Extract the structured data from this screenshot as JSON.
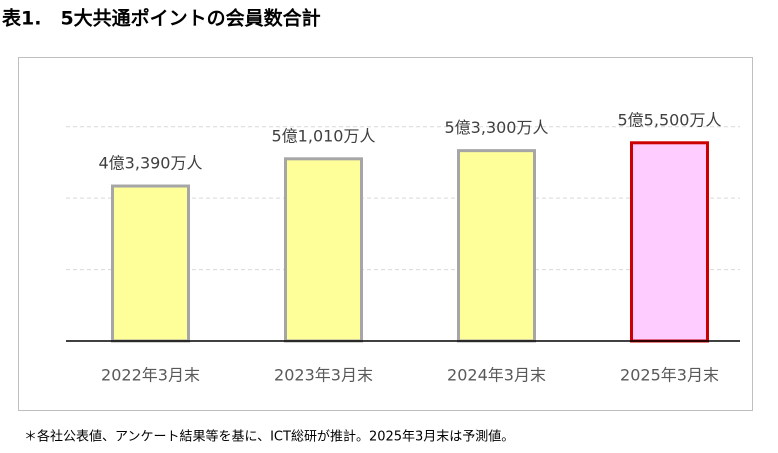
{
  "chart_data": {
    "type": "bar",
    "title": "表1.　5大共通ポイントの会員数合計",
    "note": "＊各社公表値、アンケート結果等を基に、ICT総研が推計。2025年3月末は予測値。",
    "categories": [
      "2022年3月末",
      "2023年3月末",
      "2024年3月末",
      "2025年3月末"
    ],
    "values": [
      43390,
      51010,
      53300,
      55500
    ],
    "value_labels": [
      "4億3,390万人",
      "5億1,010万人",
      "5億3,300万人",
      "5億5,500万人"
    ],
    "colors": [
      "#ffff99",
      "#ffff99",
      "#ffff99",
      "#ffccff"
    ],
    "edge_colors": [
      "#a6a6a6",
      "#a6a6a6",
      "#a6a6a6",
      "#cc0000"
    ],
    "ylim": [
      0,
      70000
    ],
    "yticks": [
      20000,
      40000,
      60000
    ],
    "grid": true
  }
}
